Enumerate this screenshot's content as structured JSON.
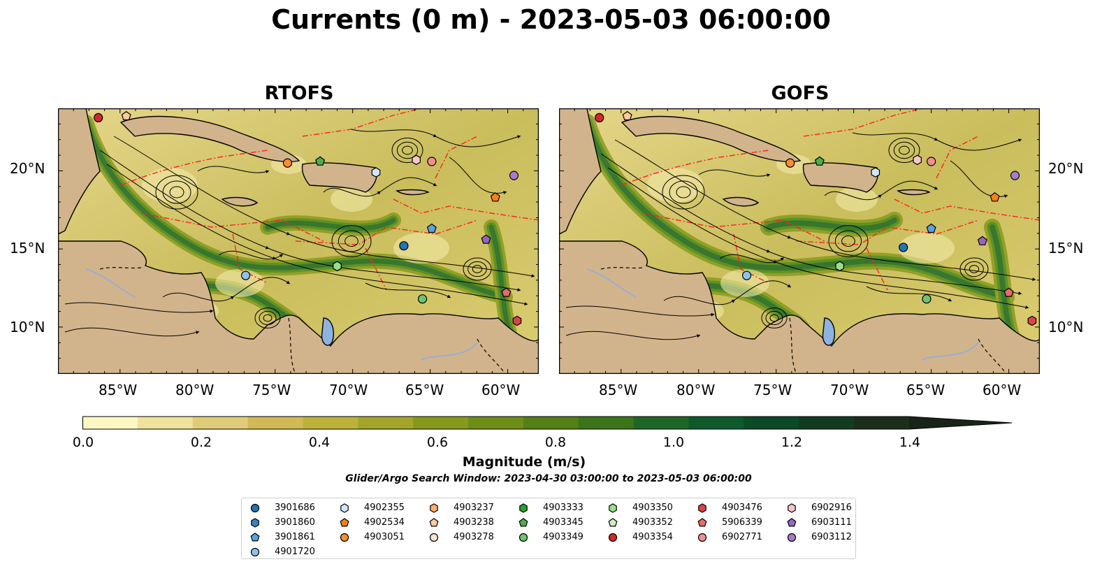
{
  "title": "Currents (0 m) - 2023-05-03 06:00:00",
  "panels": [
    {
      "title": "RTOFS"
    },
    {
      "title": "GOFS"
    }
  ],
  "axes": {
    "lat_labels": [
      "20°N",
      "15°N",
      "10°N"
    ],
    "lon_labels": [
      "85°W",
      "80°W",
      "75°W",
      "70°W",
      "65°W",
      "60°W"
    ]
  },
  "colorbar": {
    "label": "Magnitude (m/s)",
    "ticks": [
      "0.0",
      "0.2",
      "0.4",
      "0.6",
      "0.8",
      "1.0",
      "1.2",
      "1.4"
    ],
    "colors": [
      "#fdf7c4",
      "#efe29c",
      "#e0cc78",
      "#d1b955",
      "#bdb13a",
      "#a3a52a",
      "#87991c",
      "#6e8d17",
      "#548016",
      "#3b7419",
      "#1f6726",
      "#0e5a2a",
      "#0b4a26",
      "#113c20",
      "#1a2e18",
      "#18241a"
    ]
  },
  "search_window": "Glider/Argo Search Window: 2023-04-30 03:00:00 to 2023-05-03 06:00:00",
  "legend": [
    {
      "id": "3901686",
      "marker": "circle",
      "color": "#1f77b4"
    },
    {
      "id": "3901860",
      "marker": "hexagon",
      "color": "#3a82c0"
    },
    {
      "id": "3901861",
      "marker": "pentagon",
      "color": "#5aa2e0"
    },
    {
      "id": "4901720",
      "marker": "circle",
      "color": "#8ec2ec"
    },
    {
      "id": "4902355",
      "marker": "hexagon",
      "color": "#cfe6fa"
    },
    {
      "id": "4902534",
      "marker": "pentagon",
      "color": "#ff7f0e"
    },
    {
      "id": "4903051",
      "marker": "circle",
      "color": "#ff8c2e"
    },
    {
      "id": "4903237",
      "marker": "hexagon",
      "color": "#ffae6b"
    },
    {
      "id": "4903238",
      "marker": "pentagon",
      "color": "#ffcb9a"
    },
    {
      "id": "4903278",
      "marker": "circle",
      "color": "#ffe2cc"
    },
    {
      "id": "4903333",
      "marker": "hexagon",
      "color": "#2ca02c"
    },
    {
      "id": "4903345",
      "marker": "pentagon",
      "color": "#4caf4c"
    },
    {
      "id": "4903349",
      "marker": "circle",
      "color": "#6cc46c"
    },
    {
      "id": "4903350",
      "marker": "hexagon",
      "color": "#98df8a"
    },
    {
      "id": "4903352",
      "marker": "pentagon",
      "color": "#c8f0c0"
    },
    {
      "id": "4903354",
      "marker": "circle",
      "color": "#d62728"
    },
    {
      "id": "4903476",
      "marker": "hexagon",
      "color": "#d94545"
    },
    {
      "id": "5906339",
      "marker": "pentagon",
      "color": "#e86a6a"
    },
    {
      "id": "6902771",
      "marker": "circle",
      "color": "#f09090"
    },
    {
      "id": "6902916",
      "marker": "hexagon",
      "color": "#f8c8c8"
    },
    {
      "id": "6903111",
      "marker": "pentagon",
      "color": "#9467bd"
    },
    {
      "id": "6903112",
      "marker": "circle",
      "color": "#a57ccf"
    }
  ],
  "floats": {
    "RTOFS": [
      {
        "id": "4903354",
        "lon": -86.4,
        "lat": 23.4
      },
      {
        "id": "4903238",
        "lon": -84.6,
        "lat": 23.5
      },
      {
        "id": "4903051",
        "lon": -74.2,
        "lat": 20.5
      },
      {
        "id": "4903345",
        "lon": -72.1,
        "lat": 20.6
      },
      {
        "id": "4902355",
        "lon": -68.5,
        "lat": 19.9
      },
      {
        "id": "6902916",
        "lon": -65.9,
        "lat": 20.7
      },
      {
        "id": "6902771",
        "lon": -64.9,
        "lat": 20.6
      },
      {
        "id": "6903112",
        "lon": -59.6,
        "lat": 19.7
      },
      {
        "id": "4902534",
        "lon": -60.8,
        "lat": 18.3
      },
      {
        "id": "3901861",
        "lon": -64.9,
        "lat": 16.3
      },
      {
        "id": "3901686",
        "lon": -66.7,
        "lat": 15.2
      },
      {
        "id": "6903111",
        "lon": -61.4,
        "lat": 15.6
      },
      {
        "id": "4903350",
        "lon": -71.0,
        "lat": 13.9
      },
      {
        "id": "4901720",
        "lon": -76.9,
        "lat": 13.3
      },
      {
        "id": "4903349",
        "lon": -65.5,
        "lat": 11.8
      },
      {
        "id": "5906339",
        "lon": -60.1,
        "lat": 12.2
      },
      {
        "id": "4903476",
        "lon": -59.4,
        "lat": 10.4
      }
    ],
    "GOFS": [
      {
        "id": "4903354",
        "lon": -86.4,
        "lat": 23.4
      },
      {
        "id": "4903238",
        "lon": -84.6,
        "lat": 23.5
      },
      {
        "id": "4903051",
        "lon": -74.1,
        "lat": 20.5
      },
      {
        "id": "4903345",
        "lon": -72.2,
        "lat": 20.6
      },
      {
        "id": "4902355",
        "lon": -68.6,
        "lat": 19.9
      },
      {
        "id": "6902916",
        "lon": -65.9,
        "lat": 20.7
      },
      {
        "id": "6902771",
        "lon": -65.0,
        "lat": 20.6
      },
      {
        "id": "6903112",
        "lon": -59.6,
        "lat": 19.7
      },
      {
        "id": "4902534",
        "lon": -60.9,
        "lat": 18.3
      },
      {
        "id": "3901861",
        "lon": -65.0,
        "lat": 16.3
      },
      {
        "id": "3901686",
        "lon": -66.8,
        "lat": 15.1
      },
      {
        "id": "6903111",
        "lon": -61.7,
        "lat": 15.5
      },
      {
        "id": "4903350",
        "lon": -70.9,
        "lat": 13.9
      },
      {
        "id": "4901720",
        "lon": -76.9,
        "lat": 13.3
      },
      {
        "id": "4903349",
        "lon": -65.3,
        "lat": 11.8
      },
      {
        "id": "5906339",
        "lon": -60.0,
        "lat": 12.2
      },
      {
        "id": "4903476",
        "lon": -58.5,
        "lat": 10.4
      }
    ]
  }
}
